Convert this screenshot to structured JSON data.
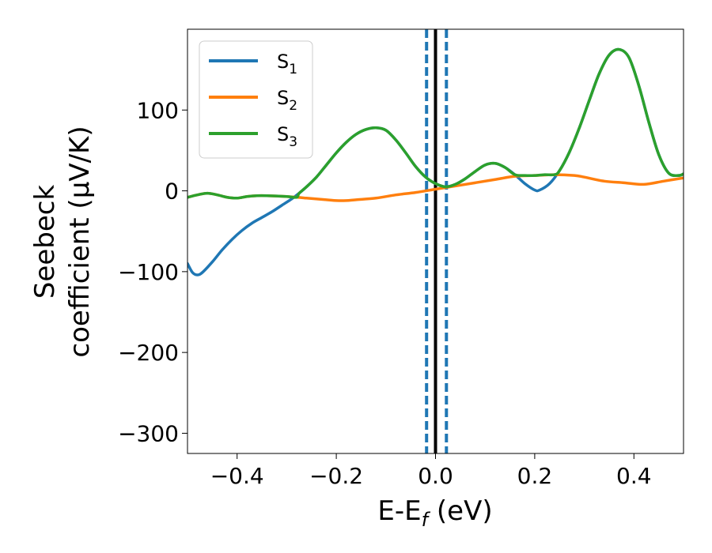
{
  "chart_data": {
    "type": "line",
    "xlabel": {
      "main": "E-E",
      "sub": "f",
      "unit": " (eV)"
    },
    "ylabel": {
      "line1": "Seebeck",
      "line2": "coefficient  (μV/K)"
    },
    "xlim": [
      -0.5,
      0.5
    ],
    "ylim": [
      -325,
      200
    ],
    "xticks": [
      {
        "value": -0.4,
        "label": "−0.4"
      },
      {
        "value": -0.2,
        "label": "−0.2"
      },
      {
        "value": 0.0,
        "label": "0.0"
      },
      {
        "value": 0.2,
        "label": "0.2"
      },
      {
        "value": 0.4,
        "label": "0.4"
      }
    ],
    "yticks": [
      {
        "value": 100,
        "label": "100"
      },
      {
        "value": 0,
        "label": "0"
      },
      {
        "value": -100,
        "label": "−100"
      },
      {
        "value": -200,
        "label": "−200"
      },
      {
        "value": -300,
        "label": "−300"
      }
    ],
    "grid": false,
    "legend_position": "top-left",
    "vlines": [
      {
        "x": 0.0,
        "color": "#000000",
        "style": "solid"
      },
      {
        "x": -0.018,
        "color": "#1f77b4",
        "style": "dashed"
      },
      {
        "x": 0.0,
        "color": "#1f77b4",
        "style": "dashed"
      },
      {
        "x": 0.022,
        "color": "#1f77b4",
        "style": "dashed"
      }
    ],
    "series": [
      {
        "name": "S",
        "sub": "1",
        "color": "#1f77b4",
        "points": [
          [
            -0.5,
            -90
          ],
          [
            -0.49,
            -101
          ],
          [
            -0.48,
            -104
          ],
          [
            -0.47,
            -101
          ],
          [
            -0.45,
            -88
          ],
          [
            -0.43,
            -73
          ],
          [
            -0.41,
            -60
          ],
          [
            -0.39,
            -49
          ],
          [
            -0.37,
            -40
          ],
          [
            -0.35,
            -33
          ],
          [
            -0.33,
            -26
          ],
          [
            -0.31,
            -18
          ],
          [
            -0.29,
            -10
          ],
          [
            -0.275,
            -3
          ],
          [
            -0.26,
            5
          ],
          [
            -0.24,
            17
          ],
          [
            -0.22,
            32
          ],
          [
            -0.2,
            47
          ],
          [
            -0.18,
            60
          ],
          [
            -0.16,
            70
          ],
          [
            -0.14,
            76
          ],
          [
            -0.12,
            78
          ],
          [
            -0.1,
            75
          ],
          [
            -0.08,
            63
          ],
          [
            -0.06,
            47
          ],
          [
            -0.04,
            30
          ],
          [
            -0.02,
            17
          ],
          [
            0.0,
            9
          ],
          [
            0.02,
            5
          ],
          [
            0.04,
            8
          ],
          [
            0.06,
            15
          ],
          [
            0.08,
            24
          ],
          [
            0.1,
            32
          ],
          [
            0.12,
            34
          ],
          [
            0.14,
            29
          ],
          [
            0.16,
            20
          ],
          [
            0.18,
            9
          ],
          [
            0.2,
            1
          ],
          [
            0.21,
            1
          ],
          [
            0.23,
            9
          ],
          [
            0.25,
            25
          ],
          [
            0.27,
            48
          ],
          [
            0.29,
            78
          ],
          [
            0.31,
            112
          ],
          [
            0.33,
            145
          ],
          [
            0.35,
            168
          ],
          [
            0.37,
            175
          ],
          [
            0.39,
            165
          ],
          [
            0.41,
            130
          ],
          [
            0.43,
            85
          ],
          [
            0.45,
            45
          ],
          [
            0.47,
            22
          ],
          [
            0.49,
            19
          ],
          [
            0.5,
            21
          ]
        ]
      },
      {
        "name": "S",
        "sub": "2",
        "color": "#ff7f0e",
        "points": [
          [
            -0.5,
            -8
          ],
          [
            -0.48,
            -5
          ],
          [
            -0.46,
            -3
          ],
          [
            -0.44,
            -5
          ],
          [
            -0.42,
            -8
          ],
          [
            -0.4,
            -9
          ],
          [
            -0.38,
            -7
          ],
          [
            -0.36,
            -6
          ],
          [
            -0.34,
            -6
          ],
          [
            -0.3,
            -7
          ],
          [
            -0.26,
            -9
          ],
          [
            -0.22,
            -11
          ],
          [
            -0.2,
            -12
          ],
          [
            -0.18,
            -12
          ],
          [
            -0.16,
            -11
          ],
          [
            -0.12,
            -9
          ],
          [
            -0.08,
            -5
          ],
          [
            -0.04,
            -2
          ],
          [
            0.0,
            2
          ],
          [
            0.04,
            6
          ],
          [
            0.08,
            10
          ],
          [
            0.12,
            14
          ],
          [
            0.16,
            18
          ],
          [
            0.2,
            19
          ],
          [
            0.24,
            20
          ],
          [
            0.28,
            19
          ],
          [
            0.3,
            17
          ],
          [
            0.34,
            12
          ],
          [
            0.38,
            10
          ],
          [
            0.42,
            8
          ],
          [
            0.46,
            12
          ],
          [
            0.5,
            16
          ]
        ]
      },
      {
        "name": "S",
        "sub": "3",
        "color": "#2ca02c",
        "points": [
          [
            -0.5,
            -8
          ],
          [
            -0.48,
            -5
          ],
          [
            -0.46,
            -3
          ],
          [
            -0.44,
            -5
          ],
          [
            -0.42,
            -8
          ],
          [
            -0.4,
            -9
          ],
          [
            -0.38,
            -7
          ],
          [
            -0.36,
            -6
          ],
          [
            -0.34,
            -6
          ],
          [
            -0.3,
            -7
          ],
          [
            -0.28,
            -8
          ],
          [
            -0.275,
            -3
          ],
          [
            -0.26,
            5
          ],
          [
            -0.24,
            17
          ],
          [
            -0.22,
            32
          ],
          [
            -0.2,
            47
          ],
          [
            -0.18,
            60
          ],
          [
            -0.16,
            70
          ],
          [
            -0.14,
            76
          ],
          [
            -0.12,
            78
          ],
          [
            -0.1,
            75
          ],
          [
            -0.08,
            63
          ],
          [
            -0.06,
            47
          ],
          [
            -0.04,
            30
          ],
          [
            -0.02,
            17
          ],
          [
            0.0,
            9
          ],
          [
            0.02,
            5
          ],
          [
            0.04,
            8
          ],
          [
            0.06,
            15
          ],
          [
            0.08,
            24
          ],
          [
            0.1,
            32
          ],
          [
            0.12,
            34
          ],
          [
            0.14,
            29
          ],
          [
            0.16,
            20
          ],
          [
            0.18,
            19
          ],
          [
            0.2,
            19
          ],
          [
            0.22,
            20
          ],
          [
            0.24,
            20
          ],
          [
            0.25,
            25
          ],
          [
            0.27,
            48
          ],
          [
            0.29,
            78
          ],
          [
            0.31,
            112
          ],
          [
            0.33,
            145
          ],
          [
            0.35,
            168
          ],
          [
            0.37,
            175
          ],
          [
            0.39,
            165
          ],
          [
            0.41,
            130
          ],
          [
            0.43,
            85
          ],
          [
            0.45,
            45
          ],
          [
            0.47,
            22
          ],
          [
            0.49,
            19
          ],
          [
            0.5,
            21
          ]
        ]
      }
    ]
  }
}
